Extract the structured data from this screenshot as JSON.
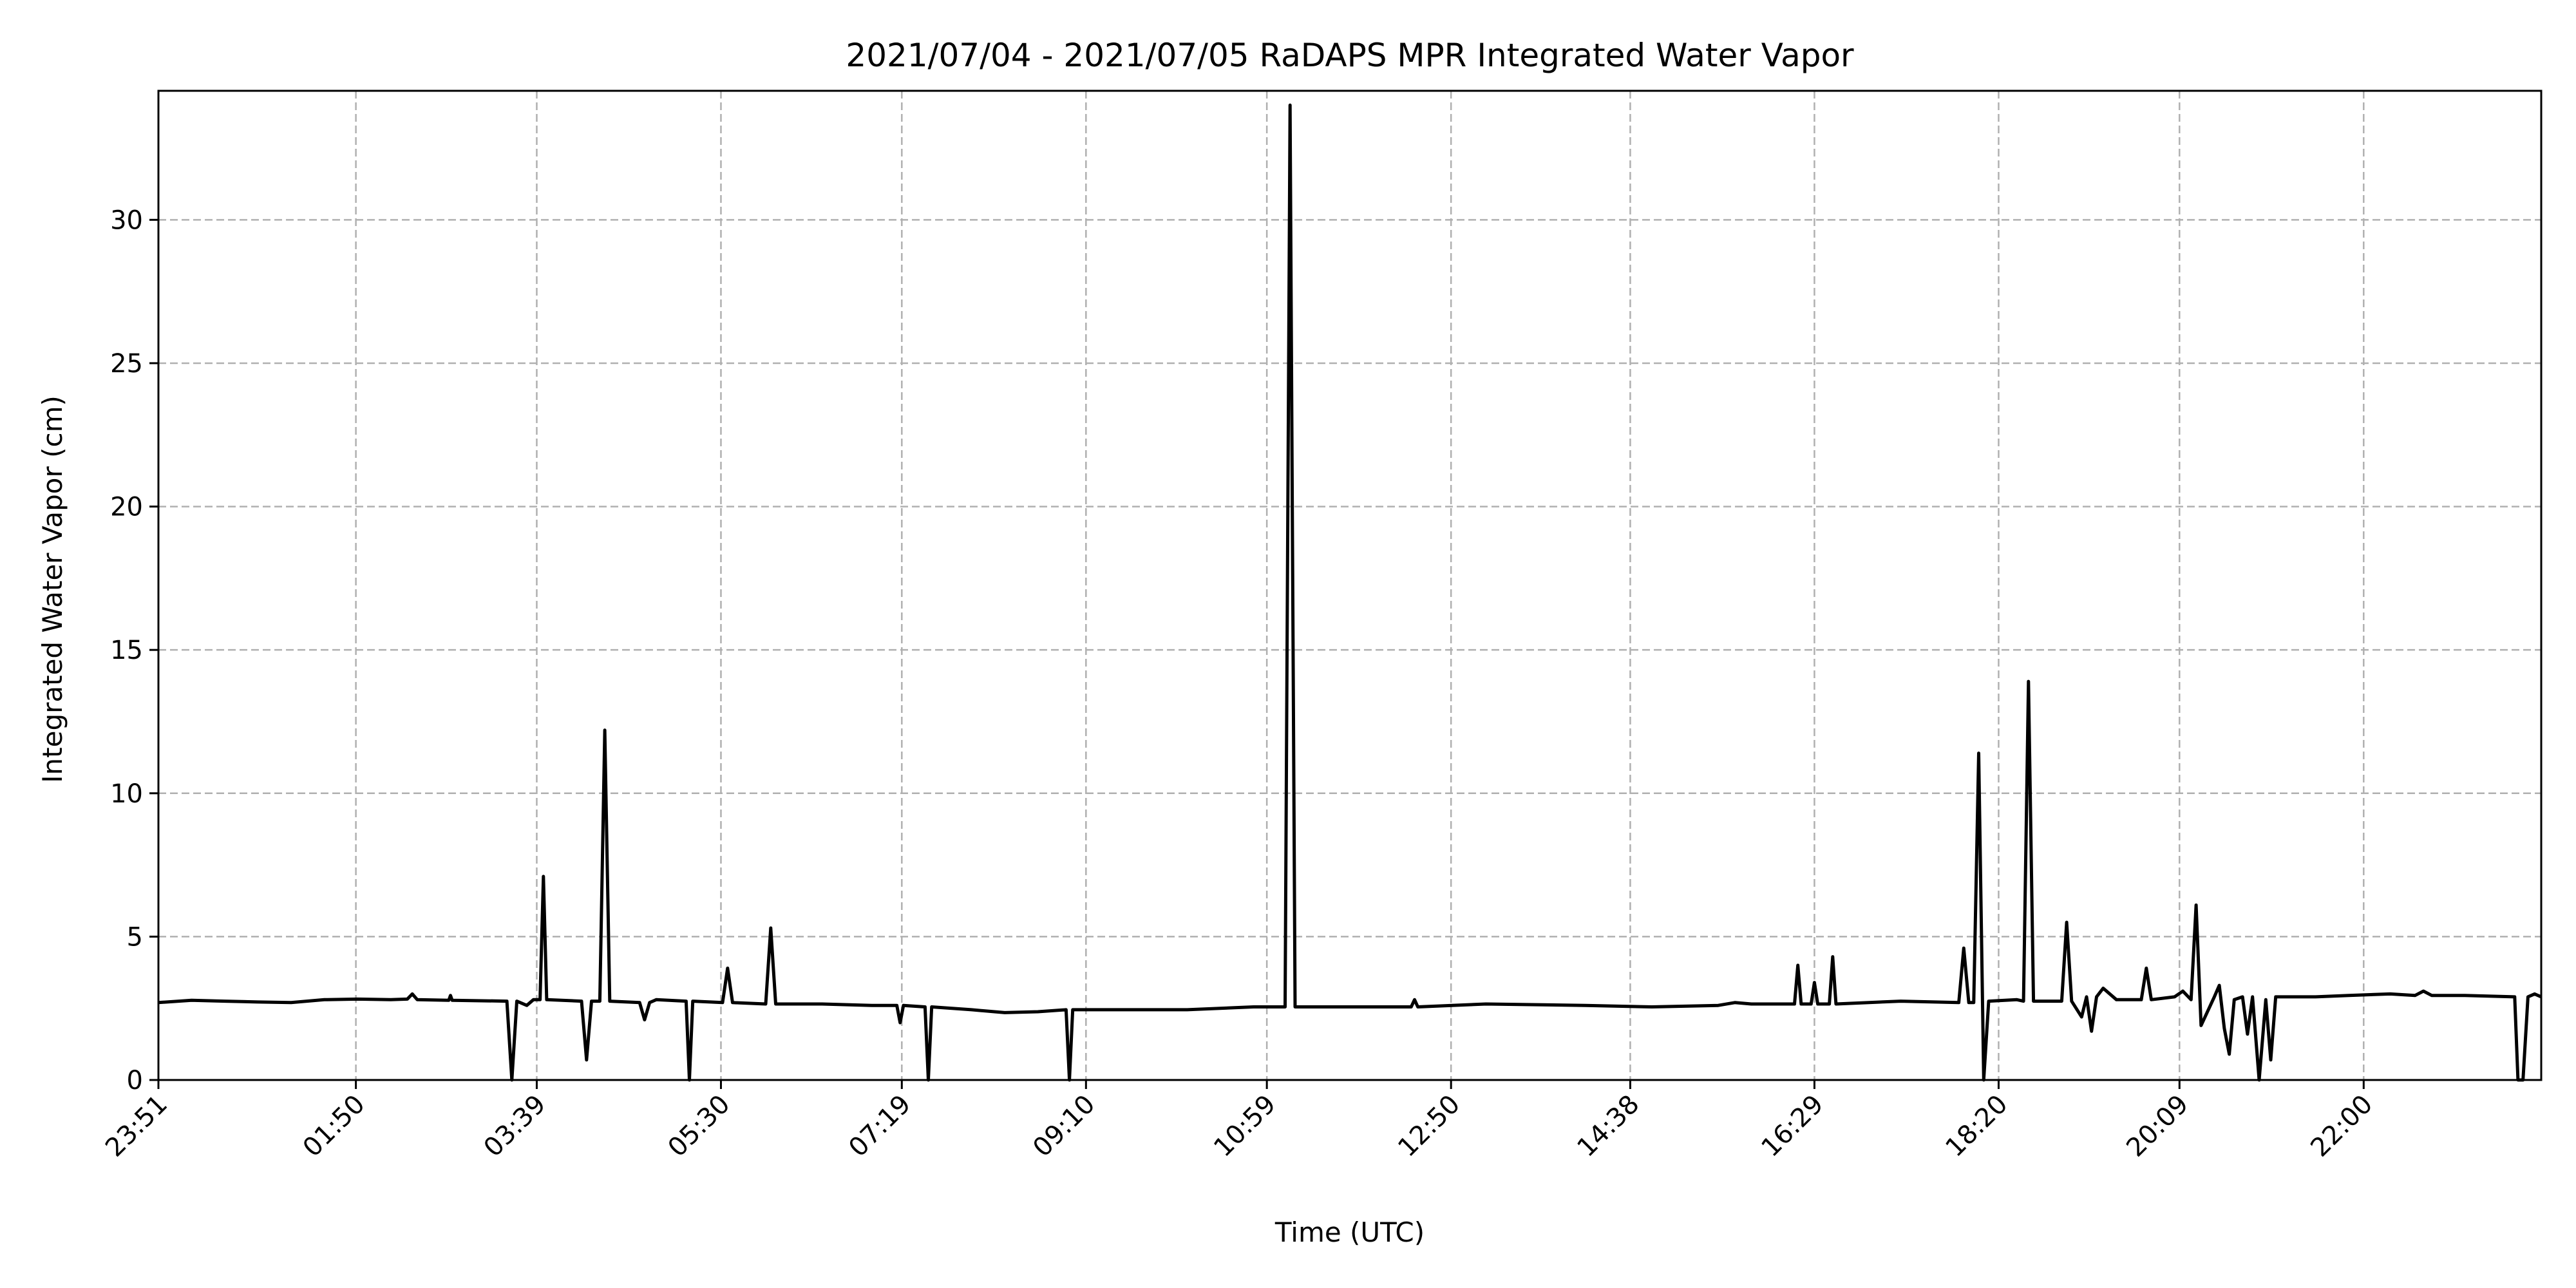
{
  "chart_data": {
    "type": "line",
    "title": "2021/07/04 - 2021/07/05 RaDAPS MPR Integrated Water Vapor",
    "xlabel": "Time (UTC)",
    "ylabel": "Integrated Water Vapor (cm)",
    "xlim": [
      0,
      1436
    ],
    "ylim": [
      0,
      34.5
    ],
    "x_ticks": [
      {
        "label": "23:51",
        "t": 0
      },
      {
        "label": "01:50",
        "t": 119
      },
      {
        "label": "03:39",
        "t": 228
      },
      {
        "label": "05:30",
        "t": 339
      },
      {
        "label": "07:19",
        "t": 448
      },
      {
        "label": "09:10",
        "t": 559
      },
      {
        "label": "10:59",
        "t": 668
      },
      {
        "label": "12:50",
        "t": 779
      },
      {
        "label": "14:38",
        "t": 887
      },
      {
        "label": "16:29",
        "t": 998
      },
      {
        "label": "18:20",
        "t": 1109
      },
      {
        "label": "20:09",
        "t": 1218
      },
      {
        "label": "22:00",
        "t": 1329
      }
    ],
    "y_ticks": [
      0,
      5,
      10,
      15,
      20,
      25,
      30
    ],
    "grid": true,
    "line_color": "#000000",
    "grid_color": "#b0b0b0",
    "series": [
      {
        "values": [
          [
            0,
            2.7
          ],
          [
            20,
            2.78
          ],
          [
            40,
            2.75
          ],
          [
            60,
            2.72
          ],
          [
            80,
            2.7
          ],
          [
            100,
            2.8
          ],
          [
            120,
            2.82
          ],
          [
            140,
            2.8
          ],
          [
            150,
            2.82
          ],
          [
            153,
            3.0
          ],
          [
            156,
            2.8
          ],
          [
            175,
            2.78
          ],
          [
            176,
            2.95
          ],
          [
            177,
            2.78
          ],
          [
            210,
            2.75
          ],
          [
            213,
            0.0
          ],
          [
            216,
            2.75
          ],
          [
            222,
            2.6
          ],
          [
            226,
            2.8
          ],
          [
            230,
            2.8
          ],
          [
            232,
            7.1
          ],
          [
            234,
            2.8
          ],
          [
            255,
            2.75
          ],
          [
            258,
            0.7
          ],
          [
            261,
            2.75
          ],
          [
            266,
            2.75
          ],
          [
            269,
            12.2
          ],
          [
            272,
            2.75
          ],
          [
            290,
            2.7
          ],
          [
            293,
            2.1
          ],
          [
            296,
            2.7
          ],
          [
            300,
            2.8
          ],
          [
            318,
            2.75
          ],
          [
            320,
            0.0
          ],
          [
            322,
            2.75
          ],
          [
            340,
            2.7
          ],
          [
            343,
            3.9
          ],
          [
            346,
            2.7
          ],
          [
            366,
            2.65
          ],
          [
            369,
            5.3
          ],
          [
            372,
            2.65
          ],
          [
            400,
            2.65
          ],
          [
            430,
            2.6
          ],
          [
            445,
            2.6
          ],
          [
            447,
            2.0
          ],
          [
            449,
            2.6
          ],
          [
            462,
            2.55
          ],
          [
            464,
            0.0
          ],
          [
            466,
            2.55
          ],
          [
            490,
            2.45
          ],
          [
            510,
            2.35
          ],
          [
            530,
            2.38
          ],
          [
            547,
            2.45
          ],
          [
            549,
            0.0
          ],
          [
            551,
            2.45
          ],
          [
            580,
            2.45
          ],
          [
            620,
            2.45
          ],
          [
            660,
            2.55
          ],
          [
            668,
            2.55
          ],
          [
            679,
            2.55
          ],
          [
            682,
            34.0
          ],
          [
            685,
            2.55
          ],
          [
            720,
            2.55
          ],
          [
            755,
            2.55
          ],
          [
            757,
            2.8
          ],
          [
            759,
            2.55
          ],
          [
            800,
            2.65
          ],
          [
            860,
            2.6
          ],
          [
            900,
            2.55
          ],
          [
            940,
            2.6
          ],
          [
            950,
            2.7
          ],
          [
            960,
            2.65
          ],
          [
            986,
            2.65
          ],
          [
            988,
            4.0
          ],
          [
            990,
            2.65
          ],
          [
            996,
            2.65
          ],
          [
            998,
            3.4
          ],
          [
            1000,
            2.65
          ],
          [
            1007,
            2.65
          ],
          [
            1009,
            4.3
          ],
          [
            1011,
            2.65
          ],
          [
            1050,
            2.75
          ],
          [
            1085,
            2.7
          ],
          [
            1088,
            4.6
          ],
          [
            1091,
            2.7
          ],
          [
            1094,
            2.7
          ],
          [
            1097,
            11.4
          ],
          [
            1100,
            0.0
          ],
          [
            1103,
            2.75
          ],
          [
            1120,
            2.8
          ],
          [
            1124,
            2.75
          ],
          [
            1127,
            13.9
          ],
          [
            1130,
            2.75
          ],
          [
            1147,
            2.75
          ],
          [
            1150,
            5.5
          ],
          [
            1153,
            2.75
          ],
          [
            1159,
            2.2
          ],
          [
            1162,
            2.9
          ],
          [
            1165,
            1.7
          ],
          [
            1168,
            2.9
          ],
          [
            1172,
            3.2
          ],
          [
            1180,
            2.8
          ],
          [
            1195,
            2.8
          ],
          [
            1198,
            3.9
          ],
          [
            1201,
            2.8
          ],
          [
            1215,
            2.9
          ],
          [
            1220,
            3.1
          ],
          [
            1225,
            2.8
          ],
          [
            1228,
            6.1
          ],
          [
            1231,
            1.9
          ],
          [
            1239,
            2.9
          ],
          [
            1242,
            3.3
          ],
          [
            1245,
            1.8
          ],
          [
            1248,
            0.9
          ],
          [
            1251,
            2.8
          ],
          [
            1256,
            2.9
          ],
          [
            1259,
            1.6
          ],
          [
            1262,
            2.9
          ],
          [
            1266,
            0.0
          ],
          [
            1270,
            2.8
          ],
          [
            1273,
            0.7
          ],
          [
            1276,
            2.9
          ],
          [
            1300,
            2.9
          ],
          [
            1320,
            2.95
          ],
          [
            1345,
            3.0
          ],
          [
            1360,
            2.95
          ],
          [
            1365,
            3.1
          ],
          [
            1370,
            2.95
          ],
          [
            1390,
            2.95
          ],
          [
            1420,
            2.9
          ],
          [
            1422,
            0.0
          ],
          [
            1425,
            0.0
          ],
          [
            1428,
            2.9
          ],
          [
            1432,
            3.0
          ],
          [
            1436,
            2.9
          ]
        ]
      }
    ]
  }
}
